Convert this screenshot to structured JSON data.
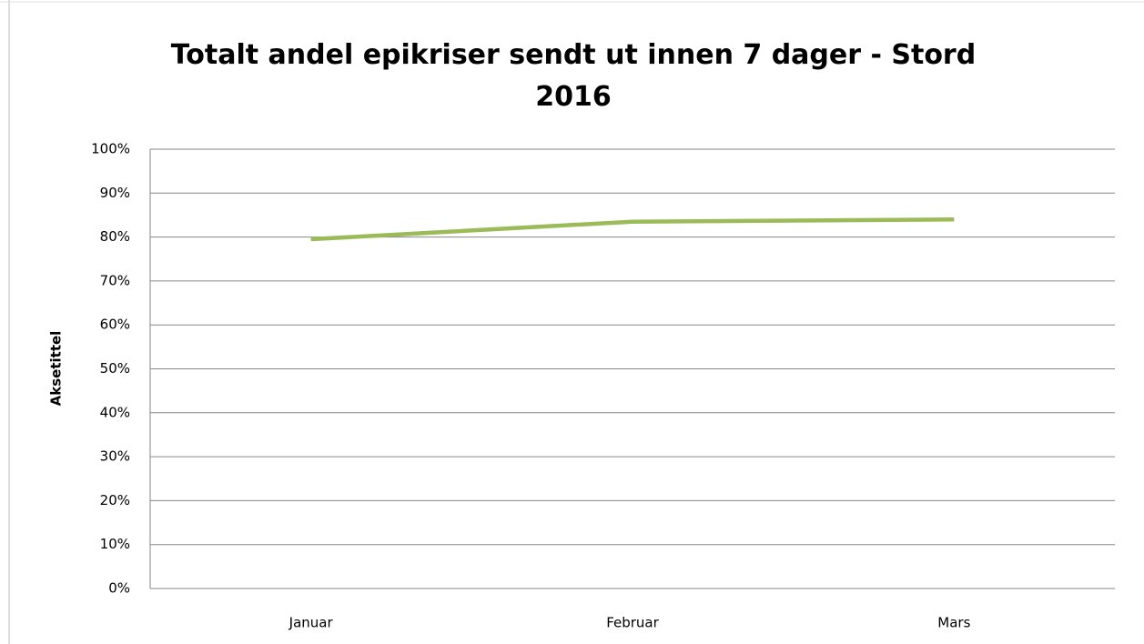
{
  "chart_data": {
    "type": "line",
    "title": "Totalt andel epikriser sendt ut innen 7 dager - Stord 2016",
    "y_label": "Aksetittel",
    "categories": [
      "Januar",
      "Februar",
      "Mars"
    ],
    "series": [
      {
        "name": "Stord",
        "color": "#9bbb59",
        "values": [
          79.5,
          83.5,
          84
        ]
      }
    ],
    "ylim": [
      0,
      100
    ],
    "yticks": [
      {
        "value": 0,
        "label": "0%"
      },
      {
        "value": 10,
        "label": "10%"
      },
      {
        "value": 20,
        "label": "20%"
      },
      {
        "value": 30,
        "label": "30%"
      },
      {
        "value": 40,
        "label": "40%"
      },
      {
        "value": 50,
        "label": "50%"
      },
      {
        "value": 60,
        "label": "60%"
      },
      {
        "value": 70,
        "label": "70%"
      },
      {
        "value": 80,
        "label": "80%"
      },
      {
        "value": 90,
        "label": "90%"
      },
      {
        "value": 100,
        "label": "100%"
      }
    ],
    "grid": true
  }
}
